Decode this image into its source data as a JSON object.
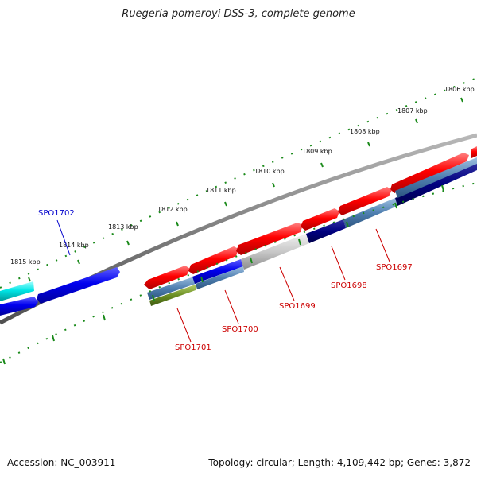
{
  "title": "Ruegeria pomeroyi DSS-3, complete genome",
  "footer": {
    "accession": "Accession: NC_003911",
    "summary": "Topology: circular; Length: 4,109,442 bp; Genes: 3,872"
  },
  "scale": {
    "ticks": [
      "1806 kbp",
      "1807 kbp",
      "1808 kbp",
      "1809 kbp",
      "1810 kbp",
      "1811 kbp",
      "1812 kbp",
      "1813 kbp",
      "1814 kbp",
      "1815 kbp"
    ]
  },
  "labels": {
    "spo1702": "SPO1702",
    "spo1701": "SPO1701",
    "spo1700": "SPO1700",
    "spo1699": "SPO1699",
    "spo1698": "SPO1698",
    "spo1697": "SPO1697"
  },
  "colors": {
    "forward_gene": "#ff0000",
    "blue_gene": "#0000ee",
    "cyan_gene": "#00e5e5",
    "navy_gene": "#000080",
    "steel_gene": "#4f7fb0",
    "grey_gene": "#c8c8c8",
    "olive_gene": "#6b8e23",
    "backbone": "#808080",
    "tick_green": "#1a8a1a",
    "label_red": "#cc0000",
    "label_blue": "#0000cc"
  }
}
